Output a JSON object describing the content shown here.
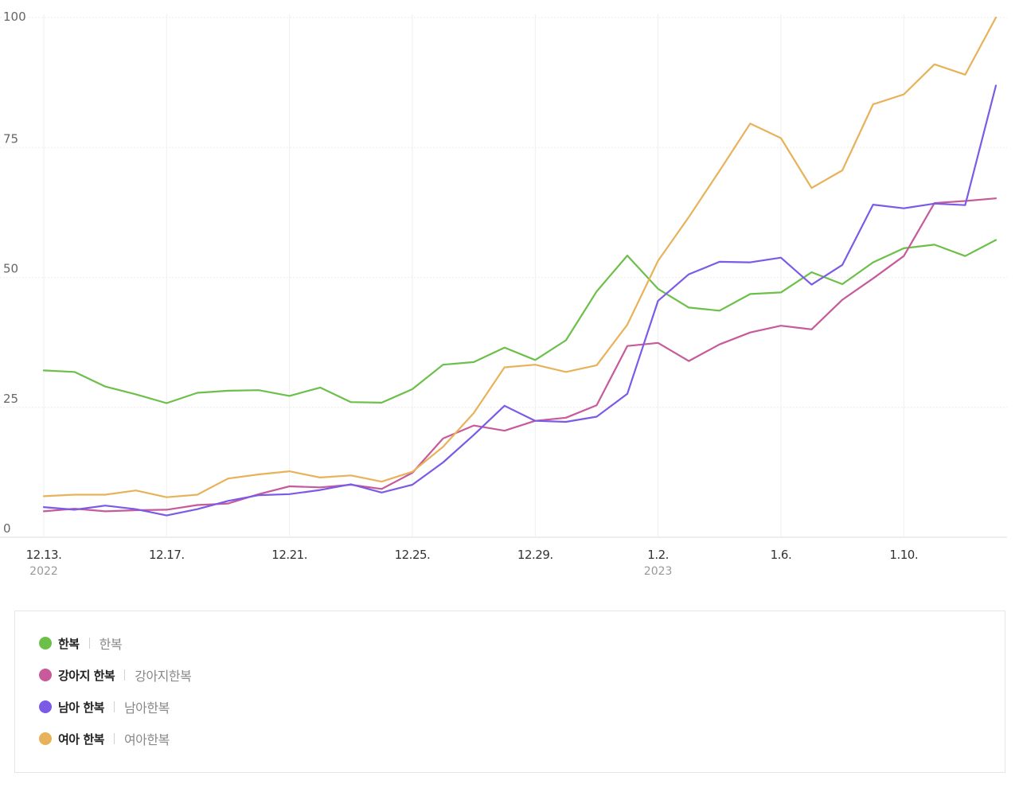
{
  "chart_data": {
    "type": "line",
    "title": "",
    "xlabel": "",
    "ylabel": "",
    "ylim": [
      0,
      100
    ],
    "yticks": [
      "0",
      "25",
      "50",
      "75",
      "100"
    ],
    "x": [
      "12.13.",
      "12.14.",
      "12.15.",
      "12.16.",
      "12.17.",
      "12.18.",
      "12.19.",
      "12.20.",
      "12.21.",
      "12.22.",
      "12.23.",
      "12.24.",
      "12.25.",
      "12.26.",
      "12.27.",
      "12.28.",
      "12.29.",
      "12.30.",
      "12.31.",
      "1.1.",
      "1.2.",
      "1.3.",
      "1.4.",
      "1.5.",
      "1.6.",
      "1.7.",
      "1.8.",
      "1.9.",
      "1.10.",
      "1.11.",
      "1.12.",
      "1.13."
    ],
    "xtick_labels": [
      {
        "index": 0,
        "label": "12.13.",
        "year": "2022"
      },
      {
        "index": 4,
        "label": "12.17.",
        "year": ""
      },
      {
        "index": 8,
        "label": "12.21.",
        "year": ""
      },
      {
        "index": 12,
        "label": "12.25.",
        "year": ""
      },
      {
        "index": 16,
        "label": "12.29.",
        "year": ""
      },
      {
        "index": 20,
        "label": "1.2.",
        "year": "2023"
      },
      {
        "index": 24,
        "label": "1.6.",
        "year": ""
      },
      {
        "index": 28,
        "label": "1.10.",
        "year": ""
      }
    ],
    "grid": true,
    "legend_position": "bottom",
    "series": [
      {
        "name": "한복",
        "keyword": "한복",
        "color": "#6cc04a",
        "values": [
          32.1,
          31.8,
          29.0,
          27.5,
          25.8,
          27.8,
          28.2,
          28.3,
          27.2,
          28.8,
          26.0,
          25.9,
          28.5,
          33.2,
          33.7,
          36.5,
          34.1,
          37.9,
          47.3,
          54.2,
          47.8,
          44.2,
          43.6,
          46.8,
          47.1,
          51.0,
          48.7,
          52.9,
          55.6,
          56.3,
          54.1,
          57.2
        ]
      },
      {
        "name": "강아지 한복",
        "keyword": "강아지한복",
        "color": "#c75a9a",
        "values": [
          5.0,
          5.5,
          5.0,
          5.2,
          5.3,
          6.2,
          6.5,
          8.3,
          9.8,
          9.6,
          10.1,
          9.3,
          12.4,
          19.0,
          21.5,
          20.5,
          22.4,
          23.0,
          25.4,
          36.8,
          37.4,
          33.9,
          37.1,
          39.4,
          40.7,
          40.0,
          45.7,
          49.8,
          54.1,
          64.3,
          64.7,
          65.2
        ]
      },
      {
        "name": "남아 한복",
        "keyword": "남아한복",
        "color": "#7b5ae6",
        "values": [
          5.8,
          5.3,
          6.1,
          5.4,
          4.2,
          5.4,
          7.0,
          8.1,
          8.3,
          9.1,
          10.2,
          8.6,
          10.1,
          14.4,
          19.7,
          25.3,
          22.4,
          22.2,
          23.2,
          27.6,
          45.5,
          50.6,
          53.0,
          52.9,
          53.8,
          48.6,
          52.4,
          64.0,
          63.3,
          64.2,
          63.9,
          86.9
        ]
      },
      {
        "name": "여아 한복",
        "keyword": "여아한복",
        "color": "#e8b25a",
        "values": [
          7.9,
          8.2,
          8.2,
          9.0,
          7.7,
          8.2,
          11.3,
          12.1,
          12.7,
          11.5,
          11.9,
          10.7,
          12.6,
          17.4,
          23.9,
          32.7,
          33.2,
          31.8,
          33.1,
          40.9,
          53.2,
          61.6,
          70.5,
          79.6,
          76.8,
          67.2,
          70.6,
          83.3,
          85.2,
          91.0,
          89.0,
          100.0
        ]
      }
    ]
  }
}
